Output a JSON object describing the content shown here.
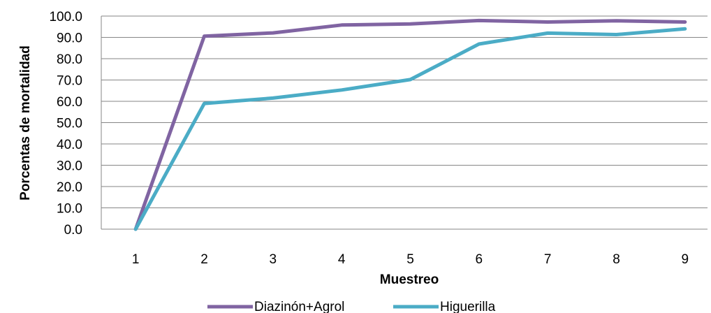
{
  "chart_data": {
    "type": "line",
    "title": "",
    "xlabel": "Muestreo",
    "ylabel": "Porcentas de mortalidad",
    "categories": [
      "1",
      "2",
      "3",
      "4",
      "5",
      "6",
      "7",
      "8",
      "9"
    ],
    "ylim": [
      0,
      100
    ],
    "yticks": [
      "0.0",
      "10.0",
      "20.0",
      "30.0",
      "40.0",
      "50.0",
      "60.0",
      "70.0",
      "80.0",
      "90.0",
      "100.0"
    ],
    "grid": "horizontal",
    "legend_position": "bottom",
    "series": [
      {
        "name": "Diazinón+Agrol",
        "color": "#8064A2",
        "values": [
          0.0,
          90.6,
          92.1,
          95.8,
          96.3,
          97.9,
          97.2,
          97.8,
          97.2
        ]
      },
      {
        "name": "Higuerilla",
        "color": "#4BACC6",
        "values": [
          0.0,
          59.0,
          61.5,
          65.3,
          70.2,
          86.9,
          92.0,
          91.3,
          94.0
        ]
      }
    ]
  }
}
